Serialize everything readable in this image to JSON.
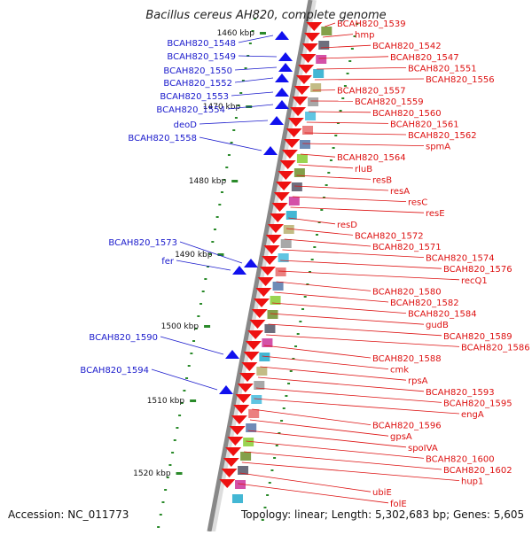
{
  "title": "Bacillus cereus AH820, complete genome",
  "footer": {
    "accession": "Accession: NC_011773",
    "summary": "Topology: linear; Length: 5,302,683 bp; Genes: 5,605"
  },
  "scale_ticks": [
    "1460 kbp",
    "1470 kbp",
    "1480 kbp",
    "1490 kbp",
    "1500 kbp",
    "1510 kbp",
    "1520 kbp"
  ],
  "left_genes": [
    "BCAH820_1548",
    "BCAH820_1549",
    "BCAH820_1550",
    "BCAH820_1552",
    "BCAH820_1553",
    "BCAH820_1554",
    "deoD",
    "BCAH820_1558",
    "BCAH820_1573",
    "fer",
    "BCAH820_1590",
    "BCAH820_1594"
  ],
  "right_genes": [
    "BCAH820_1539",
    "hmp",
    "BCAH820_1542",
    "BCAH820_1547",
    "BCAH820_1551",
    "BCAH820_1556",
    "BCAH820_1557",
    "BCAH820_1559",
    "BCAH820_1560",
    "BCAH820_1561",
    "BCAH820_1562",
    "spmA",
    "BCAH820_1564",
    "rluB",
    "resB",
    "resA",
    "resC",
    "resE",
    "resD",
    "BCAH820_1572",
    "BCAH820_1571",
    "BCAH820_1574",
    "BCAH820_1576",
    "recQ1",
    "BCAH820_1580",
    "BCAH820_1582",
    "BCAH820_1584",
    "gudB",
    "BCAH820_1589",
    "BCAH820_1586",
    "BCAH820_1588",
    "cmk",
    "rpsA",
    "BCAH820_1593",
    "BCAH820_1595",
    "engA",
    "BCAH820_1596",
    "gpsA",
    "spoIVA",
    "BCAH820_1600",
    "BCAH820_1602",
    "hup1",
    "ubiE",
    "folE"
  ],
  "colors": {
    "left_label": "#1a1acc",
    "right_label": "#dd1111",
    "backbone": "#888888",
    "tick": "#2a8a2a"
  }
}
